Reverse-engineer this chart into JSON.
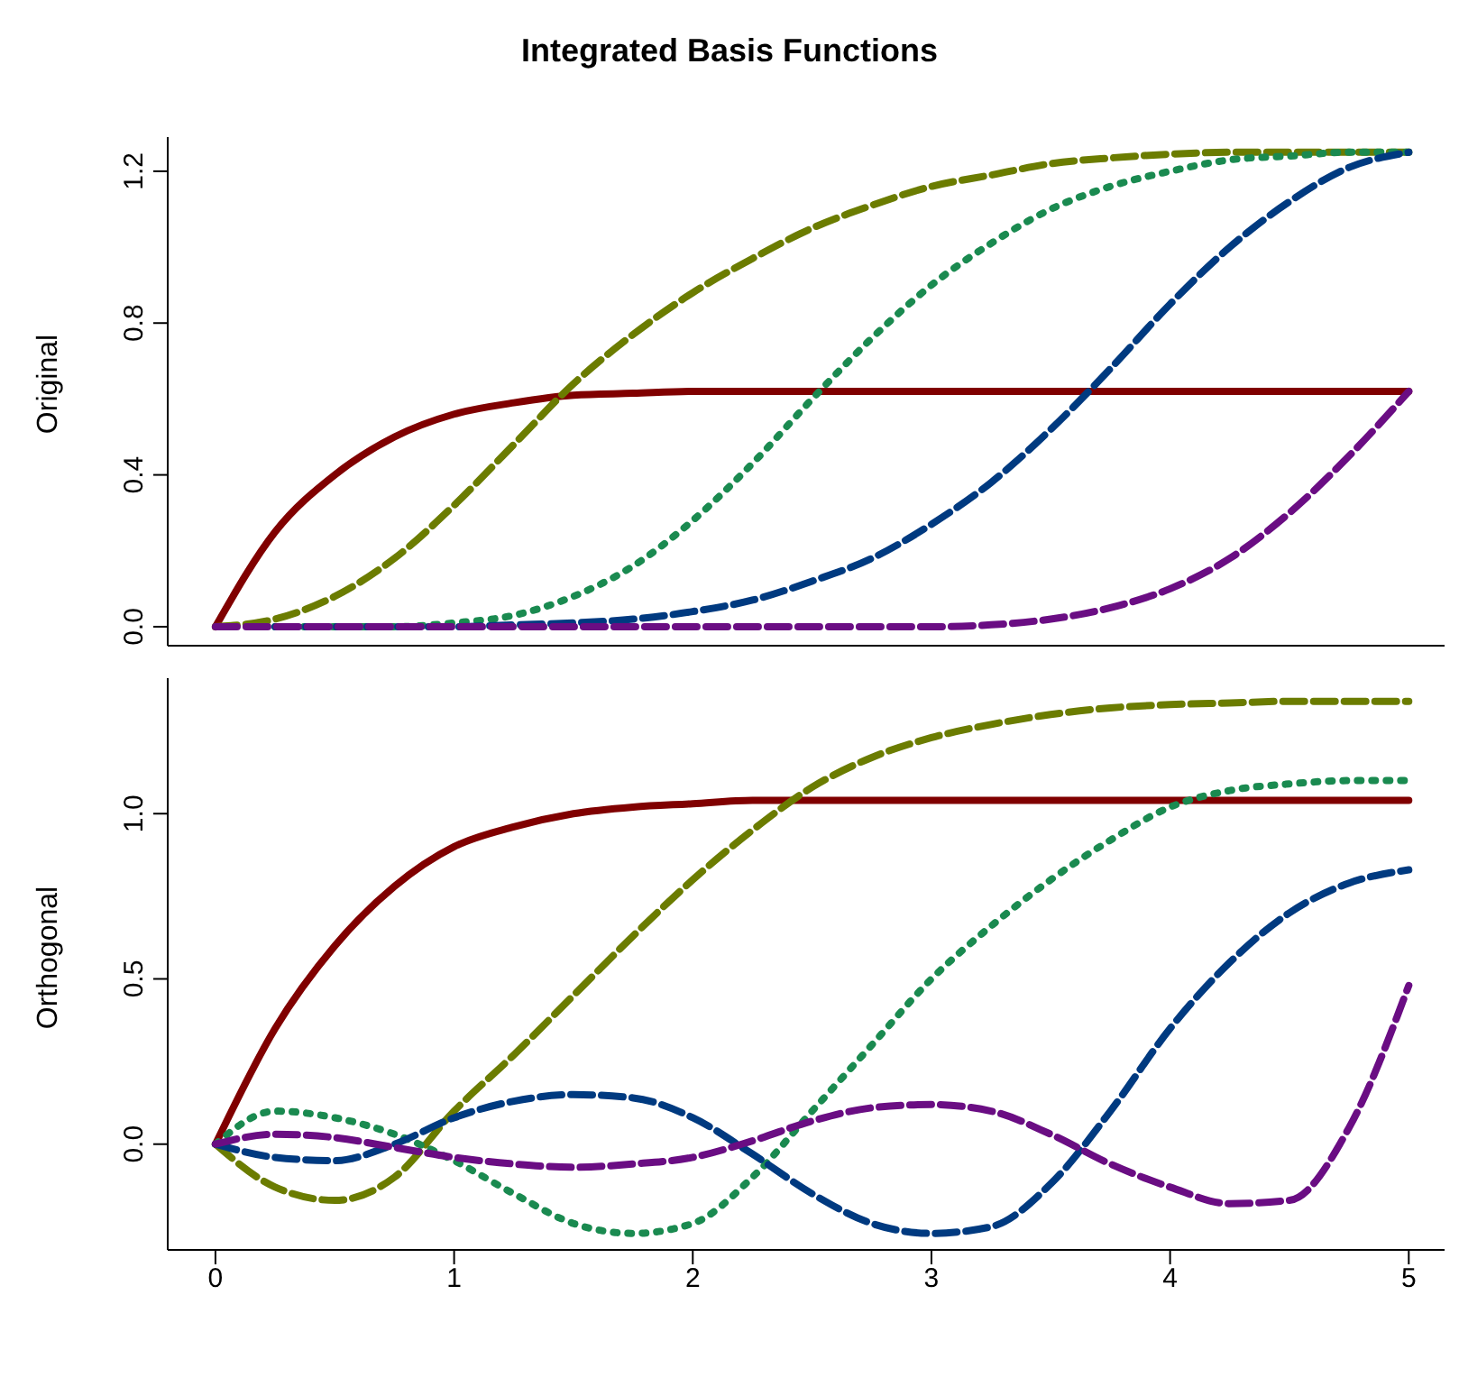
{
  "chart_data": [
    {
      "type": "line",
      "title": "Integrated Basis Functions",
      "ylabel": "Original",
      "tick_labels": "y",
      "grid": false,
      "legend": false,
      "marker": "none",
      "xlim": [
        -0.2,
        5.15
      ],
      "ylim": [
        -0.05,
        1.29
      ],
      "yticks": [
        {
          "value": 0,
          "label": "0.0"
        },
        {
          "value": 0.4,
          "label": "0.4"
        },
        {
          "value": 0.8,
          "label": "0.8"
        },
        {
          "value": 1.2,
          "label": "1.2"
        }
      ],
      "x": [
        0,
        0.25,
        0.5,
        0.75,
        1,
        1.25,
        1.5,
        1.75,
        2,
        2.25,
        2.5,
        2.75,
        3,
        3.25,
        3.5,
        3.75,
        4,
        4.25,
        4.5,
        4.75,
        5
      ],
      "series": [
        {
          "color": "#800000",
          "line_style": "solid",
          "values": [
            0,
            0.25,
            0.4,
            0.5,
            0.56,
            0.59,
            0.61,
            0.615,
            0.62,
            0.62,
            0.62,
            0.62,
            0.62,
            0.62,
            0.62,
            0.62,
            0.62,
            0.62,
            0.62,
            0.62,
            0.62
          ]
        },
        {
          "color": "#6b7c00",
          "line_style": "dashed",
          "values": [
            0,
            0.02,
            0.08,
            0.18,
            0.32,
            0.48,
            0.64,
            0.77,
            0.88,
            0.97,
            1.05,
            1.11,
            1.16,
            1.19,
            1.22,
            1.235,
            1.245,
            1.25,
            1.25,
            1.25,
            1.25
          ]
        },
        {
          "color": "#1a8a50",
          "line_style": "dotted",
          "values": [
            null,
            0,
            0,
            0,
            0.01,
            0.03,
            0.08,
            0.16,
            0.28,
            0.43,
            0.6,
            0.76,
            0.9,
            1.01,
            1.1,
            1.16,
            1.2,
            1.23,
            1.24,
            1.25,
            1.25
          ]
        },
        {
          "color": "#003a80",
          "line_style": "dashed",
          "values": [
            null,
            0,
            0,
            0,
            0,
            0.005,
            0.01,
            0.02,
            0.04,
            0.07,
            0.12,
            0.18,
            0.27,
            0.38,
            0.52,
            0.68,
            0.85,
            1.0,
            1.12,
            1.21,
            1.25
          ]
        },
        {
          "color": "#6a0d83",
          "line_style": "dashed",
          "values": [
            0,
            0,
            0,
            0,
            0,
            0,
            0,
            0,
            0,
            0,
            0,
            0,
            0,
            0.005,
            0.02,
            0.05,
            0.1,
            0.18,
            0.3,
            0.45,
            0.62
          ]
        }
      ]
    },
    {
      "type": "line",
      "ylabel": "Orthogonal",
      "grid": false,
      "legend": false,
      "marker": "none",
      "xlim": [
        -0.2,
        5.15
      ],
      "ylim": [
        -0.32,
        1.41
      ],
      "xticks": [
        0,
        1,
        2,
        3,
        4,
        5
      ],
      "yticks": [
        {
          "value": 0,
          "label": "0.0"
        },
        {
          "value": 0.5,
          "label": "0.5"
        },
        {
          "value": 1,
          "label": "1.0"
        }
      ],
      "x": [
        0,
        0.25,
        0.5,
        0.75,
        1,
        1.25,
        1.5,
        1.75,
        2,
        2.25,
        2.5,
        2.75,
        3,
        3.25,
        3.5,
        3.75,
        4,
        4.25,
        4.5,
        4.75,
        5
      ],
      "series": [
        {
          "color": "#800000",
          "line_style": "solid",
          "values": [
            0,
            0.35,
            0.6,
            0.78,
            0.9,
            0.96,
            1.0,
            1.02,
            1.03,
            1.04,
            1.04,
            1.04,
            1.04,
            1.04,
            1.04,
            1.04,
            1.04,
            1.04,
            1.04,
            1.04,
            1.04
          ]
        },
        {
          "color": "#6b7c00",
          "line_style": "dashed",
          "values": [
            0,
            -0.13,
            -0.17,
            -0.1,
            0.1,
            0.27,
            0.45,
            0.63,
            0.8,
            0.95,
            1.08,
            1.17,
            1.23,
            1.27,
            1.3,
            1.32,
            1.33,
            1.335,
            1.34,
            1.34,
            1.34
          ]
        },
        {
          "color": "#1a8a50",
          "line_style": "dotted",
          "values": [
            0,
            0.1,
            0.08,
            0.03,
            -0.05,
            -0.15,
            -0.24,
            -0.27,
            -0.24,
            -0.1,
            0.1,
            0.3,
            0.5,
            0.66,
            0.8,
            0.92,
            1.02,
            1.07,
            1.09,
            1.1,
            1.1
          ]
        },
        {
          "color": "#003a80",
          "line_style": "dashed",
          "values": [
            0,
            -0.04,
            -0.05,
            0,
            0.08,
            0.13,
            0.15,
            0.14,
            0.08,
            -0.03,
            -0.15,
            -0.24,
            -0.27,
            -0.25,
            -0.12,
            0.1,
            0.35,
            0.55,
            0.7,
            0.79,
            0.83
          ]
        },
        {
          "color": "#6a0d83",
          "line_style": "dashed",
          "values": [
            0,
            0.03,
            0.02,
            -0.01,
            -0.04,
            -0.06,
            -0.07,
            -0.06,
            -0.04,
            0.01,
            0.07,
            0.11,
            0.12,
            0.1,
            0.03,
            -0.06,
            -0.13,
            -0.18,
            -0.17,
            0.05,
            0.48
          ]
        }
      ]
    }
  ]
}
